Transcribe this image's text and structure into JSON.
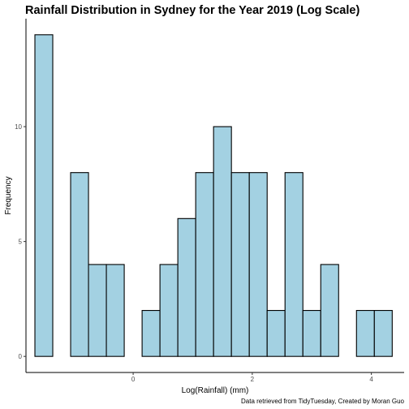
{
  "chart_data": {
    "type": "bar",
    "title": "Rainfall Distribution in Sydney for the Year 2019 (Log Scale)",
    "xlabel": "Log(Rainfall) (mm)",
    "ylabel": "Frequency",
    "caption": "Data retrieved from TidyTuesday, Created by Moran Guo",
    "bin_width": 0.3,
    "bins": [
      {
        "x0": -1.65,
        "x1": -1.35,
        "count": 14
      },
      {
        "x0": -1.35,
        "x1": -1.05,
        "count": 0
      },
      {
        "x0": -1.05,
        "x1": -0.75,
        "count": 8
      },
      {
        "x0": -0.75,
        "x1": -0.45,
        "count": 4
      },
      {
        "x0": -0.45,
        "x1": -0.15,
        "count": 4
      },
      {
        "x0": -0.15,
        "x1": 0.15,
        "count": 0
      },
      {
        "x0": 0.15,
        "x1": 0.45,
        "count": 2
      },
      {
        "x0": 0.45,
        "x1": 0.75,
        "count": 4
      },
      {
        "x0": 0.75,
        "x1": 1.05,
        "count": 6
      },
      {
        "x0": 1.05,
        "x1": 1.35,
        "count": 8
      },
      {
        "x0": 1.35,
        "x1": 1.65,
        "count": 10
      },
      {
        "x0": 1.65,
        "x1": 1.95,
        "count": 8
      },
      {
        "x0": 1.95,
        "x1": 2.25,
        "count": 8
      },
      {
        "x0": 2.25,
        "x1": 2.55,
        "count": 2
      },
      {
        "x0": 2.55,
        "x1": 2.85,
        "count": 8
      },
      {
        "x0": 2.85,
        "x1": 3.15,
        "count": 2
      },
      {
        "x0": 3.15,
        "x1": 3.45,
        "count": 4
      },
      {
        "x0": 3.45,
        "x1": 3.75,
        "count": 0
      },
      {
        "x0": 3.75,
        "x1": 4.05,
        "count": 2
      },
      {
        "x0": 4.05,
        "x1": 4.35,
        "count": 2
      }
    ],
    "x_ticks": [
      0,
      2,
      4
    ],
    "x_tick_labels": [
      "0",
      "2",
      "4"
    ],
    "y_ticks": [
      0,
      5,
      10
    ],
    "y_tick_labels": [
      "0",
      "5",
      "10"
    ],
    "xlim": [
      -1.8,
      4.55
    ],
    "ylim": [
      -0.7,
      14.7
    ],
    "bar_fill": "#a3d1e2",
    "bar_stroke": "#000000",
    "grid": false
  }
}
